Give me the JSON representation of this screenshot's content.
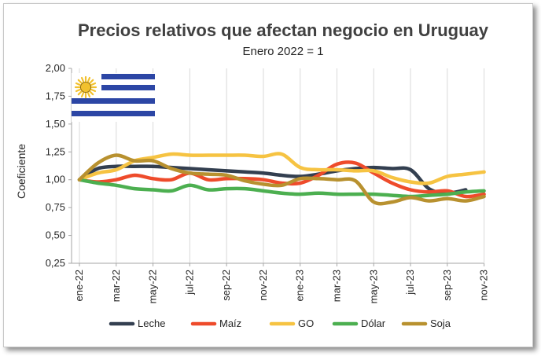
{
  "chart_data": {
    "type": "line",
    "title": "Precios relativos que afectan negocio en Uruguay",
    "subtitle": "Enero 2022 = 1",
    "xlabel": "",
    "ylabel": "Coeficiente",
    "ylim": [
      0.25,
      2.0
    ],
    "y_ticks": [
      "0,25",
      "0,50",
      "0,75",
      "1,00",
      "1,25",
      "1,50",
      "1,75",
      "2,00"
    ],
    "x_ticks": [
      "ene-22",
      "mar-22",
      "may-22",
      "jul-22",
      "sep-22",
      "nov-22",
      "ene-23",
      "mar-23",
      "may-23",
      "jul-23",
      "sep-23",
      "nov-23"
    ],
    "x_months": [
      "ene-22",
      "feb-22",
      "mar-22",
      "abr-22",
      "may-22",
      "jun-22",
      "jul-22",
      "ago-22",
      "sep-22",
      "oct-22",
      "nov-22",
      "dic-22",
      "ene-23",
      "feb-23",
      "mar-23",
      "abr-23",
      "may-23",
      "jun-23",
      "jul-23",
      "ago-23",
      "sep-23",
      "oct-23",
      "nov-23"
    ],
    "grid": "vertical",
    "legend_position": "bottom",
    "series": [
      {
        "name": "Leche",
        "color": "#333f50",
        "values": [
          1.0,
          1.1,
          1.12,
          1.12,
          1.12,
          1.11,
          1.1,
          1.09,
          1.08,
          1.07,
          1.06,
          1.04,
          1.03,
          1.05,
          1.08,
          1.1,
          1.11,
          1.1,
          1.09,
          0.92,
          0.88,
          0.91,
          null
        ]
      },
      {
        "name": "Maíz",
        "color": "#ee4b2b",
        "values": [
          1.0,
          0.98,
          1.0,
          1.04,
          1.01,
          1.0,
          1.06,
          1.0,
          1.01,
          1.01,
          1.0,
          0.97,
          0.97,
          1.04,
          1.14,
          1.15,
          1.06,
          0.97,
          0.91,
          0.89,
          0.9,
          0.85,
          0.87
        ]
      },
      {
        "name": "GO",
        "color": "#f6c342",
        "values": [
          1.0,
          1.06,
          1.09,
          1.17,
          1.2,
          1.23,
          1.22,
          1.22,
          1.22,
          1.22,
          1.21,
          1.23,
          1.11,
          1.09,
          1.09,
          1.08,
          1.08,
          1.02,
          0.98,
          0.97,
          1.03,
          1.05,
          1.07
        ]
      },
      {
        "name": "Dólar",
        "color": "#4caf50",
        "values": [
          1.0,
          0.97,
          0.95,
          0.92,
          0.91,
          0.9,
          0.95,
          0.91,
          0.92,
          0.92,
          0.9,
          0.88,
          0.87,
          0.88,
          0.87,
          0.87,
          0.87,
          0.86,
          0.85,
          0.86,
          0.87,
          0.89,
          0.9
        ]
      },
      {
        "name": "Soja",
        "color": "#b8912f",
        "values": [
          1.0,
          1.15,
          1.22,
          1.17,
          1.17,
          1.1,
          1.06,
          1.05,
          1.04,
          0.99,
          0.96,
          0.95,
          1.01,
          1.01,
          1.0,
          0.99,
          0.8,
          0.8,
          0.84,
          0.81,
          0.83,
          0.81,
          0.85
        ]
      }
    ]
  },
  "flag": {
    "sun_color": "#f2c12e",
    "stripe_color": "#2c46a5"
  },
  "colors": {
    "axis": "#a6a6a6",
    "grid": "#d9d9d9",
    "text": "#262626",
    "title": "#404040"
  }
}
